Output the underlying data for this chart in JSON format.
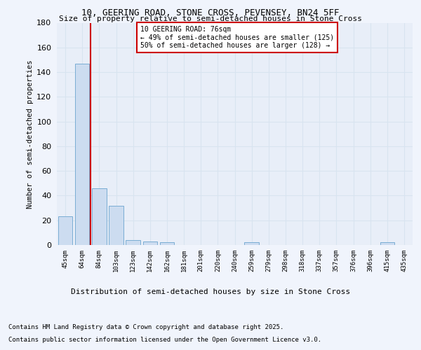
{
  "title1": "10, GEERING ROAD, STONE CROSS, PEVENSEY, BN24 5FF",
  "title2": "Size of property relative to semi-detached houses in Stone Cross",
  "xlabel": "Distribution of semi-detached houses by size in Stone Cross",
  "ylabel": "Number of semi-detached properties",
  "categories": [
    "45sqm",
    "64sqm",
    "84sqm",
    "103sqm",
    "123sqm",
    "142sqm",
    "162sqm",
    "181sqm",
    "201sqm",
    "220sqm",
    "240sqm",
    "259sqm",
    "279sqm",
    "298sqm",
    "318sqm",
    "337sqm",
    "357sqm",
    "376sqm",
    "396sqm",
    "415sqm",
    "435sqm"
  ],
  "values": [
    23,
    147,
    46,
    32,
    4,
    3,
    2,
    0,
    0,
    0,
    0,
    2,
    0,
    0,
    0,
    0,
    0,
    0,
    0,
    2,
    0
  ],
  "bar_color": "#ccdcf0",
  "bar_edge_color": "#7aadd4",
  "grid_color": "#d8e4f0",
  "vline_x": 1.5,
  "vline_color": "#cc0000",
  "annotation_text": "10 GEERING ROAD: 76sqm\n← 49% of semi-detached houses are smaller (125)\n50% of semi-detached houses are larger (128) →",
  "annotation_box_color": "#ffffff",
  "annotation_box_edge": "#cc0000",
  "ylim": [
    0,
    180
  ],
  "yticks": [
    0,
    20,
    40,
    60,
    80,
    100,
    120,
    140,
    160,
    180
  ],
  "bg_color": "#e8eef8",
  "fig_color": "#f0f4fc",
  "footer1": "Contains HM Land Registry data © Crown copyright and database right 2025.",
  "footer2": "Contains public sector information licensed under the Open Government Licence v3.0."
}
